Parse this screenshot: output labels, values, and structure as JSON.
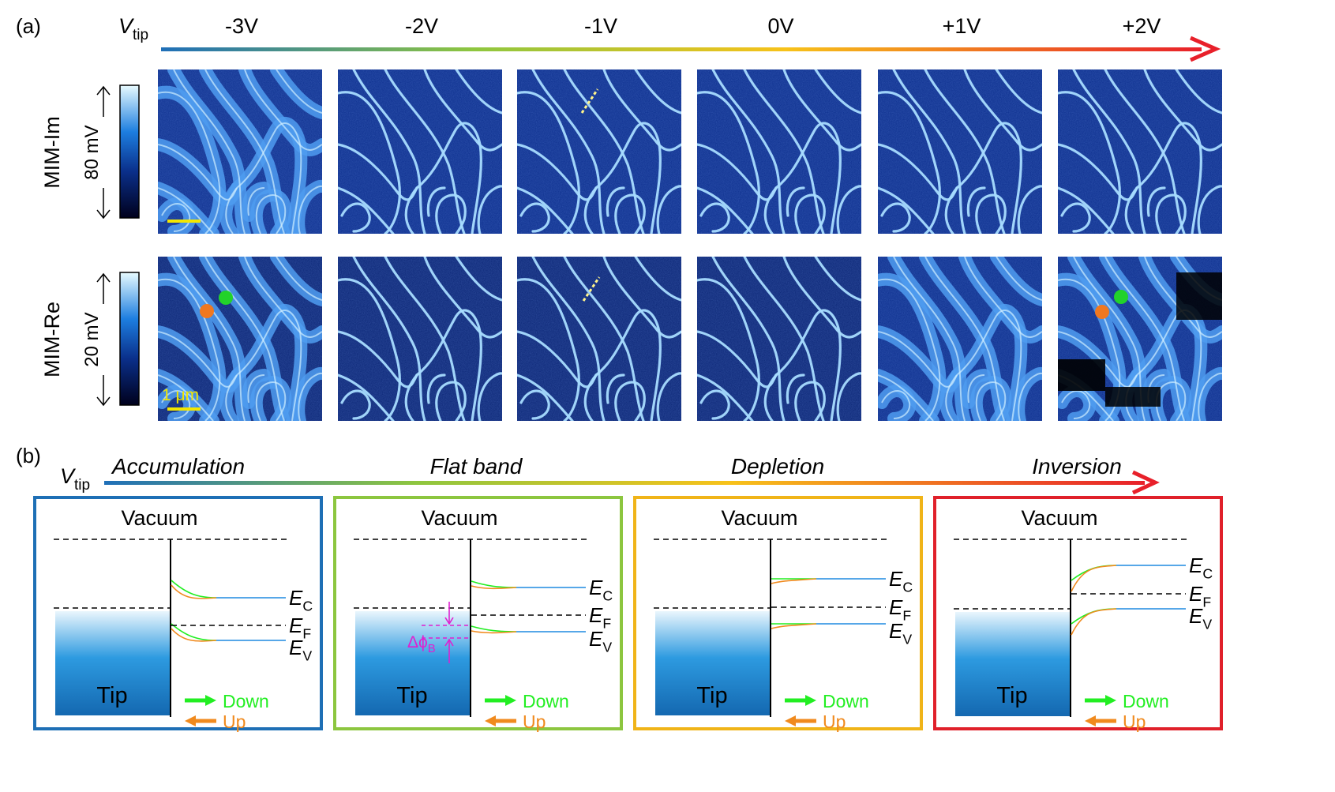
{
  "panel_a": {
    "label": "(a)",
    "vtip_symbol": "V",
    "vtip_sub": "tip",
    "voltages": [
      "-3V",
      "-2V",
      "-1V",
      "0V",
      "+1V",
      "+2V"
    ],
    "rows": [
      {
        "name": "MIM-Im",
        "scale": "80 mV"
      },
      {
        "name": "MIM-Re",
        "scale": "20 mV"
      }
    ],
    "scalebar_label": "1 μm",
    "colors": {
      "scalebar": "#f2e600",
      "marker_orange": "#f07820",
      "marker_green": "#22d22a"
    }
  },
  "panel_b": {
    "label": "(b)",
    "vtip_symbol": "V",
    "vtip_sub": "tip",
    "regimes": [
      "Accumulation",
      "Flat band",
      "Depletion",
      "Inversion"
    ],
    "diagrams": [
      {
        "border": "#1e6fb5",
        "vacuum": "Vacuum",
        "tip": "Tip",
        "ec": "E",
        "ec_sub": "C",
        "ef": "E",
        "ef_sub": "F",
        "ev": "E",
        "ev_sub": "V",
        "down": "Down",
        "up": "Up"
      },
      {
        "border": "#8cc63f",
        "vacuum": "Vacuum",
        "tip": "Tip",
        "ec": "E",
        "ec_sub": "C",
        "ef": "E",
        "ef_sub": "F",
        "ev": "E",
        "ev_sub": "V",
        "down": "Down",
        "up": "Up",
        "barrier": "Δϕ",
        "barrier_sub": "B"
      },
      {
        "border": "#f0b418",
        "vacuum": "Vacuum",
        "tip": "Tip",
        "ec": "E",
        "ec_sub": "C",
        "ef": "E",
        "ef_sub": "F",
        "ev": "E",
        "ev_sub": "V",
        "down": "Down",
        "up": "Up"
      },
      {
        "border": "#e0202a",
        "vacuum": "Vacuum",
        "tip": "Tip",
        "ec": "E",
        "ec_sub": "C",
        "ef": "E",
        "ef_sub": "F",
        "ev": "E",
        "ev_sub": "V",
        "down": "Down",
        "up": "Up"
      }
    ],
    "colors": {
      "down": "#22ee22",
      "up": "#f08a1e",
      "band": "#1e8ae0",
      "barrier": "#e020d0"
    }
  }
}
